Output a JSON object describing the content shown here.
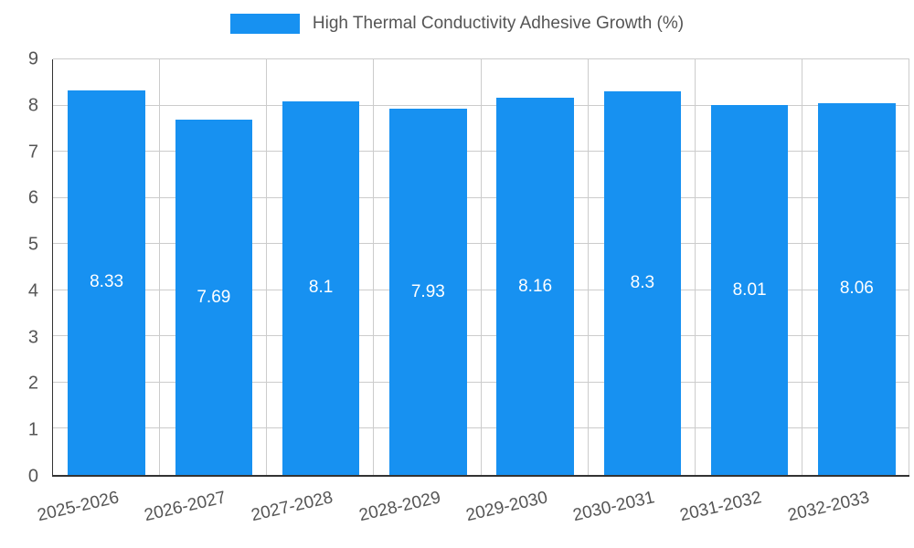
{
  "chart_data": {
    "type": "bar",
    "title": "High Thermal Conductivity Adhesive Growth (%)",
    "categories": [
      "2025-2026",
      "2026-2027",
      "2027-2028",
      "2028-2029",
      "2029-2030",
      "2030-2031",
      "2031-2032",
      "2032-2033"
    ],
    "values": [
      8.33,
      7.69,
      8.1,
      7.93,
      8.16,
      8.3,
      8.01,
      8.06
    ],
    "xlabel": "",
    "ylabel": "",
    "ylim": [
      0,
      9
    ],
    "yticks": [
      0,
      1,
      2,
      3,
      4,
      5,
      6,
      7,
      8,
      9
    ],
    "grid": true,
    "legend_position": "top",
    "bar_color": "#1791f1",
    "value_label_color": "#ffffff",
    "axis_text_color": "#555555",
    "grid_color": "#cccccc",
    "axis_line_color": "#333333"
  }
}
